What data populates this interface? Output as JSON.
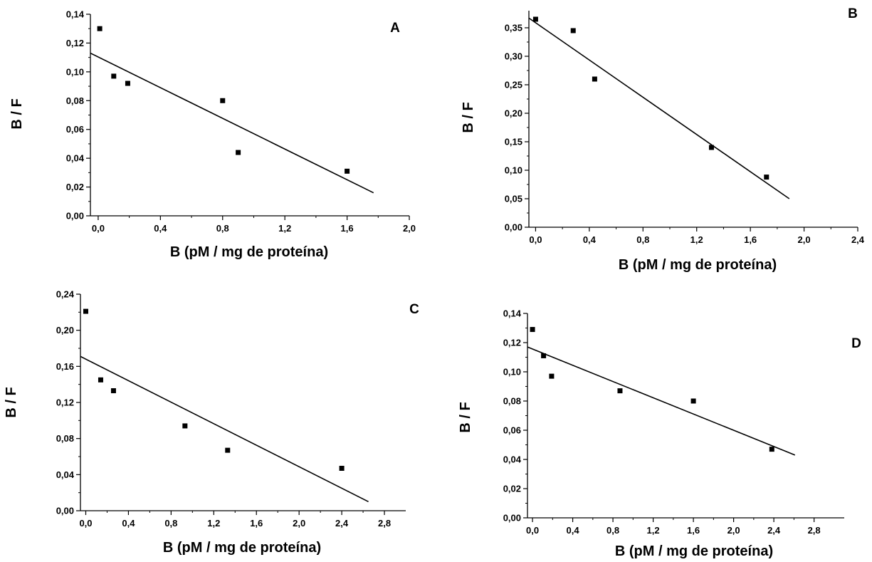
{
  "chart_data": [
    {
      "type": "scatter",
      "panel_label": "A",
      "xlabel": "B (pM / mg de proteína)",
      "ylabel": "B / F",
      "xlim": [
        -0.05,
        2.0
      ],
      "ylim": [
        0.0,
        0.14
      ],
      "x_ticks": [
        "0,0",
        "0,4",
        "0,8",
        "1,2",
        "1,6",
        "2,0"
      ],
      "x_tick_values": [
        0.0,
        0.4,
        0.8,
        1.2,
        1.6,
        2.0
      ],
      "y_ticks": [
        "0,00",
        "0,02",
        "0,04",
        "0,06",
        "0,08",
        "0,10",
        "0,12",
        "0,14"
      ],
      "y_tick_values": [
        0.0,
        0.02,
        0.04,
        0.06,
        0.08,
        0.1,
        0.12,
        0.14
      ],
      "points": [
        {
          "x": 0.01,
          "y": 0.13
        },
        {
          "x": 0.1,
          "y": 0.097
        },
        {
          "x": 0.19,
          "y": 0.092
        },
        {
          "x": 0.8,
          "y": 0.08
        },
        {
          "x": 0.9,
          "y": 0.044
        },
        {
          "x": 1.6,
          "y": 0.031
        }
      ],
      "fit_line": {
        "x": [
          -0.05,
          1.77
        ],
        "y": [
          0.113,
          0.016
        ]
      }
    },
    {
      "type": "scatter",
      "panel_label": "B",
      "xlabel": "B (pM / mg de proteína)",
      "ylabel": "B / F",
      "xlim": [
        -0.05,
        2.4
      ],
      "ylim": [
        0.0,
        0.38
      ],
      "x_ticks": [
        "0,0",
        "0,4",
        "0,8",
        "1,2",
        "1,6",
        "2,0",
        "2,4"
      ],
      "x_tick_values": [
        0.0,
        0.4,
        0.8,
        1.2,
        1.6,
        2.0,
        2.4
      ],
      "y_ticks": [
        "0,00",
        "0,05",
        "0,10",
        "0,15",
        "0,20",
        "0,25",
        "0,30",
        "0,35"
      ],
      "y_tick_values": [
        0.0,
        0.05,
        0.1,
        0.15,
        0.2,
        0.25,
        0.3,
        0.35
      ],
      "points": [
        {
          "x": 0.0,
          "y": 0.365
        },
        {
          "x": 0.28,
          "y": 0.345
        },
        {
          "x": 0.44,
          "y": 0.26
        },
        {
          "x": 1.31,
          "y": 0.14
        },
        {
          "x": 1.72,
          "y": 0.088
        }
      ],
      "fit_line": {
        "x": [
          -0.05,
          1.89
        ],
        "y": [
          0.367,
          0.05
        ]
      }
    },
    {
      "type": "scatter",
      "panel_label": "C",
      "xlabel": "B (pM / mg de proteína)",
      "ylabel": "B / F",
      "xlim": [
        -0.05,
        3.0
      ],
      "ylim": [
        0.0,
        0.24
      ],
      "x_ticks": [
        "0,0",
        "0,4",
        "0,8",
        "1,2",
        "1,6",
        "2,0",
        "2,4",
        "2,8"
      ],
      "x_tick_values": [
        0.0,
        0.4,
        0.8,
        1.2,
        1.6,
        2.0,
        2.4,
        2.8
      ],
      "y_ticks": [
        "0,00",
        "0,04",
        "0,08",
        "0,12",
        "0,16",
        "0,20",
        "0,24"
      ],
      "y_tick_values": [
        0.0,
        0.04,
        0.08,
        0.12,
        0.16,
        0.2,
        0.24
      ],
      "points": [
        {
          "x": 0.0,
          "y": 0.221
        },
        {
          "x": 0.14,
          "y": 0.145
        },
        {
          "x": 0.26,
          "y": 0.133
        },
        {
          "x": 0.93,
          "y": 0.094
        },
        {
          "x": 1.33,
          "y": 0.067
        },
        {
          "x": 2.4,
          "y": 0.047
        }
      ],
      "fit_line": {
        "x": [
          -0.05,
          2.65
        ],
        "y": [
          0.171,
          0.01
        ]
      }
    },
    {
      "type": "scatter",
      "panel_label": "D",
      "xlabel": "B (pM / mg de proteína)",
      "ylabel": "B / F",
      "xlim": [
        -0.05,
        3.1
      ],
      "ylim": [
        0.0,
        0.14
      ],
      "x_ticks": [
        "0,0",
        "0,4",
        "0,8",
        "1,2",
        "1,6",
        "2,0",
        "2,4",
        "2,8"
      ],
      "x_tick_values": [
        0.0,
        0.4,
        0.8,
        1.2,
        1.6,
        2.0,
        2.4,
        2.8
      ],
      "y_ticks": [
        "0,00",
        "0,02",
        "0,04",
        "0,06",
        "0,08",
        "0,10",
        "0,12",
        "0,14"
      ],
      "y_tick_values": [
        0.0,
        0.02,
        0.04,
        0.06,
        0.08,
        0.1,
        0.12,
        0.14
      ],
      "points": [
        {
          "x": 0.0,
          "y": 0.129
        },
        {
          "x": 0.11,
          "y": 0.111
        },
        {
          "x": 0.19,
          "y": 0.097
        },
        {
          "x": 0.87,
          "y": 0.087
        },
        {
          "x": 1.6,
          "y": 0.08
        },
        {
          "x": 2.38,
          "y": 0.047
        }
      ],
      "fit_line": {
        "x": [
          -0.05,
          2.61
        ],
        "y": [
          0.117,
          0.043
        ]
      }
    }
  ]
}
